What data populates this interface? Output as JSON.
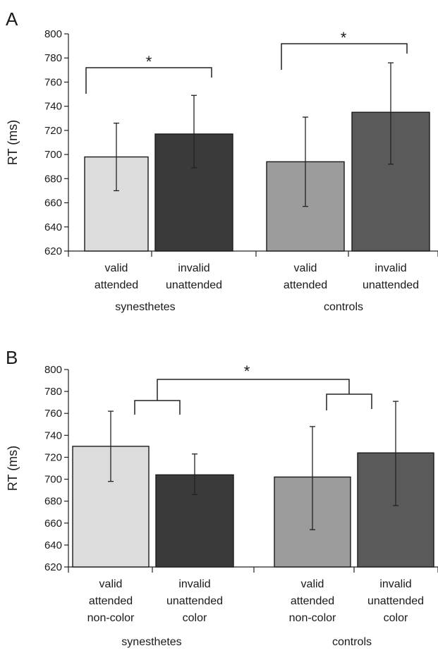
{
  "chart_data": [
    {
      "type": "bar",
      "panel_label": "A",
      "ylabel": "RT (ms)",
      "ylim": [
        620,
        800
      ],
      "yticks": [
        620,
        640,
        660,
        680,
        700,
        720,
        740,
        760,
        780,
        800
      ],
      "groups": [
        {
          "name": "synesthetes",
          "bars": [
            {
              "label_lines": [
                "valid",
                "attended"
              ],
              "value": 698,
              "err_low": 670,
              "err_high": 726,
              "color": "#dcdcdc"
            },
            {
              "label_lines": [
                "invalid",
                "unattended"
              ],
              "value": 717,
              "err_low": 689,
              "err_high": 749,
              "color": "#3a3a3a"
            }
          ]
        },
        {
          "name": "controls",
          "bars": [
            {
              "label_lines": [
                "valid",
                "attended"
              ],
              "value": 694,
              "err_low": 657,
              "err_high": 731,
              "color": "#9c9c9c"
            },
            {
              "label_lines": [
                "invalid",
                "unattended"
              ],
              "value": 735,
              "err_low": 692,
              "err_high": 776,
              "color": "#5a5a5a"
            }
          ]
        }
      ],
      "significance": [
        "*",
        "*"
      ],
      "grid": false
    },
    {
      "type": "bar",
      "panel_label": "B",
      "ylabel": "RT (ms)",
      "ylim": [
        620,
        800
      ],
      "yticks": [
        620,
        640,
        660,
        680,
        700,
        720,
        740,
        760,
        780,
        800
      ],
      "groups": [
        {
          "name": "synesthetes",
          "bars": [
            {
              "label_lines": [
                "valid",
                "attended",
                "non-color"
              ],
              "value": 730,
              "err_low": 698,
              "err_high": 762,
              "color": "#dcdcdc"
            },
            {
              "label_lines": [
                "invalid",
                "unattended",
                "color"
              ],
              "value": 704,
              "err_low": 686,
              "err_high": 723,
              "color": "#3a3a3a"
            }
          ]
        },
        {
          "name": "controls",
          "bars": [
            {
              "label_lines": [
                "valid",
                "attended",
                "non-color"
              ],
              "value": 702,
              "err_low": 654,
              "err_high": 748,
              "color": "#9c9c9c"
            },
            {
              "label_lines": [
                "invalid",
                "unattended",
                "color"
              ],
              "value": 724,
              "err_low": 676,
              "err_high": 771,
              "color": "#5a5a5a"
            }
          ]
        }
      ],
      "significance": [
        "*"
      ],
      "grid": false
    }
  ]
}
